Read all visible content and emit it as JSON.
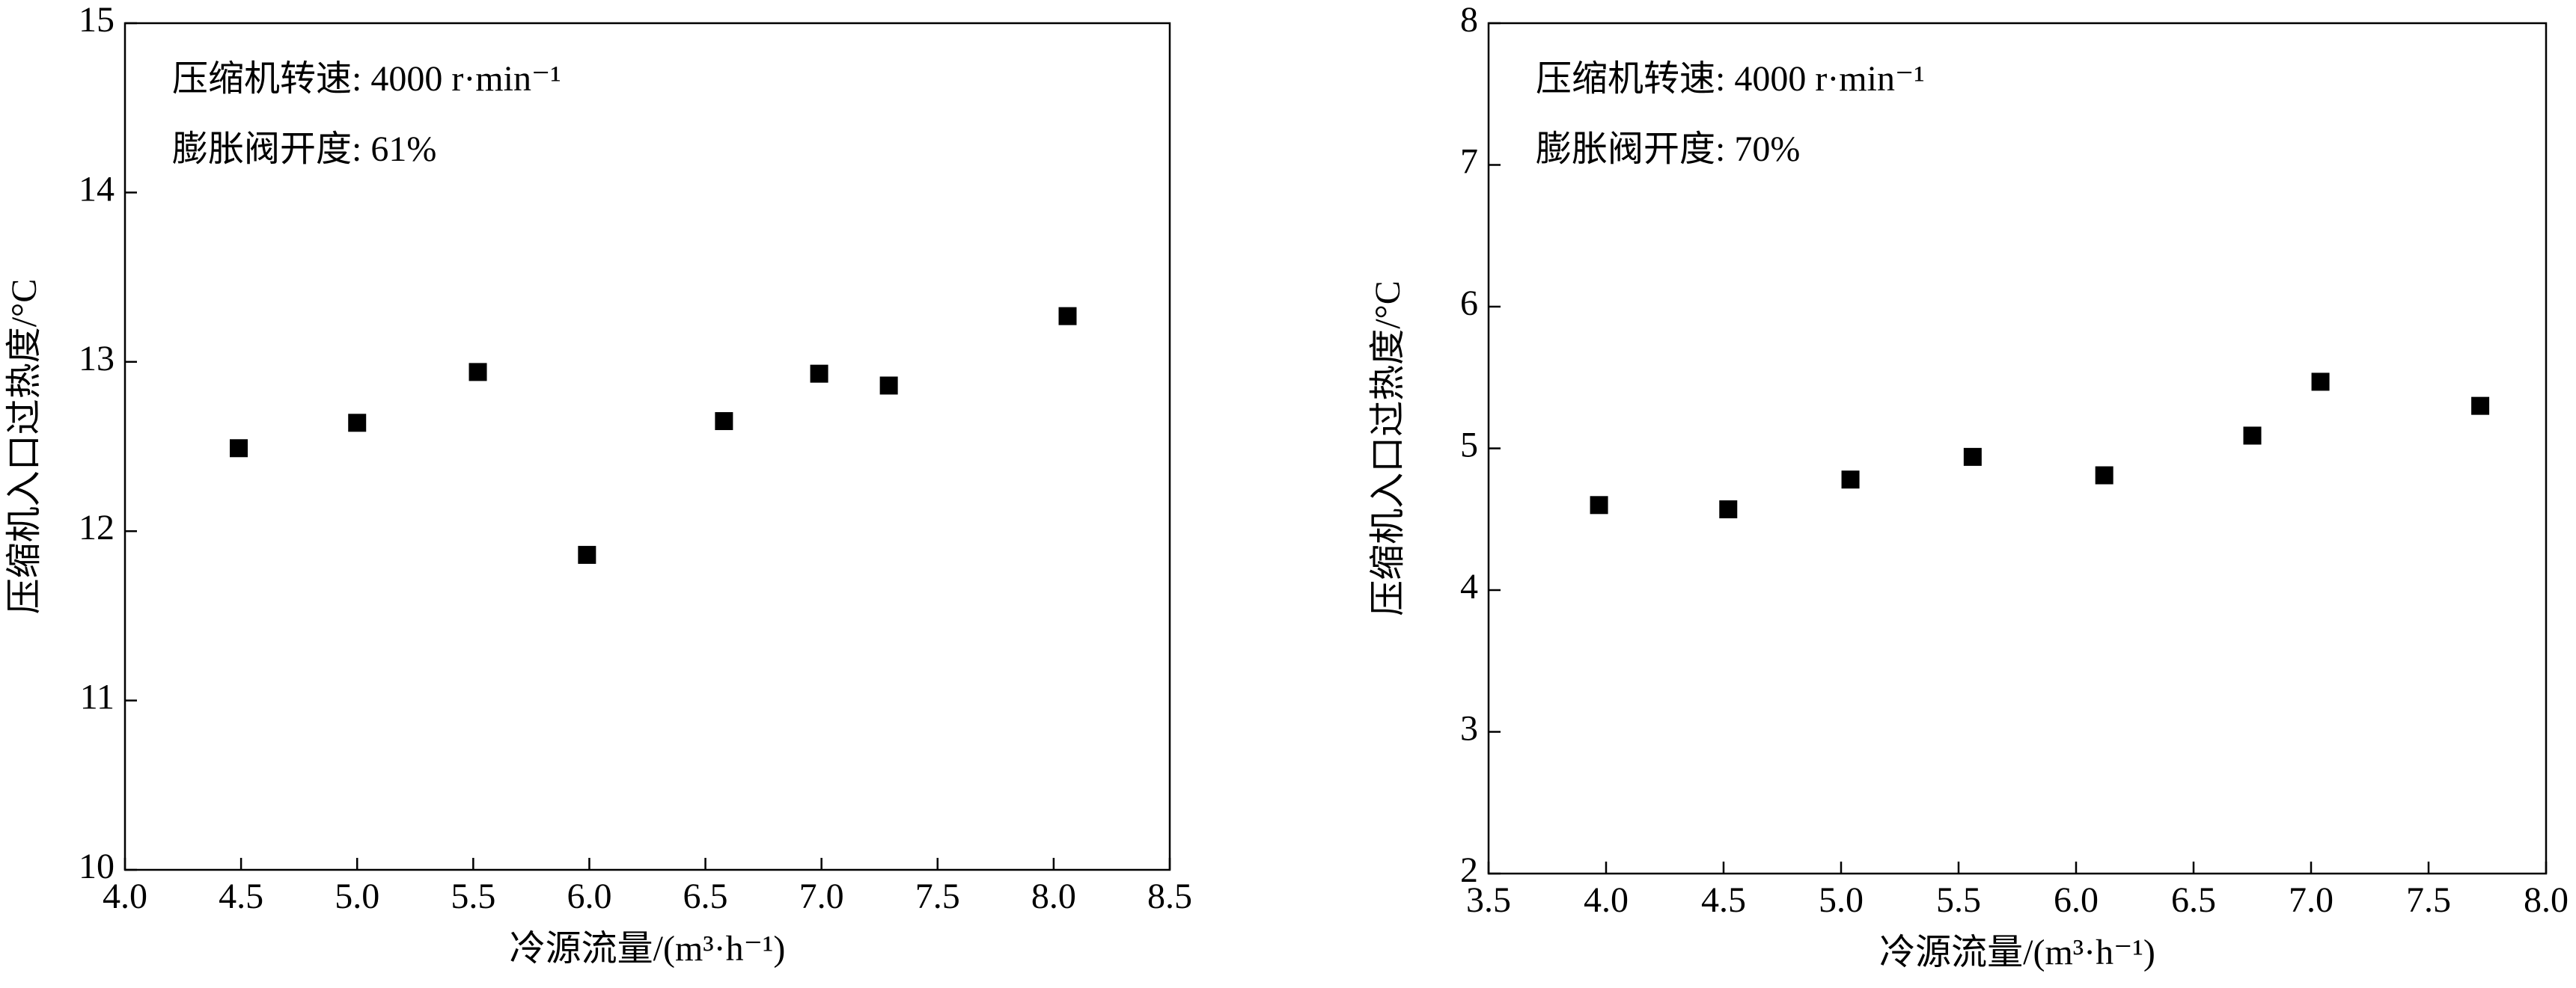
{
  "chart_data": [
    {
      "type": "scatter",
      "annotations": [
        "压缩机转速: 4000 r·min⁻¹",
        "膨胀阀开度: 61%"
      ],
      "x_label": "冷源流量/(m³·h⁻¹)",
      "y_label": "压缩机入口过热度/°C",
      "x": [
        4.49,
        5.0,
        5.52,
        5.99,
        6.58,
        6.99,
        7.29,
        8.06
      ],
      "values": [
        12.49,
        12.64,
        12.94,
        11.86,
        12.65,
        12.93,
        12.86,
        13.27
      ],
      "color": "#000000",
      "xlim": [
        4.0,
        8.5
      ],
      "xticks": [
        {
          "value": 4.0,
          "label": "4.0"
        },
        {
          "value": 4.5,
          "label": "4.5"
        },
        {
          "value": 5.0,
          "label": "5.0"
        },
        {
          "value": 5.5,
          "label": "5.5"
        },
        {
          "value": 6.0,
          "label": "6.0"
        },
        {
          "value": 6.5,
          "label": "6.5"
        },
        {
          "value": 7.0,
          "label": "7.0"
        },
        {
          "value": 7.5,
          "label": "7.5"
        },
        {
          "value": 8.0,
          "label": "8.0"
        },
        {
          "value": 8.5,
          "label": "8.5"
        }
      ],
      "ylim": [
        10,
        15
      ],
      "yticks": [
        10,
        11,
        12,
        13,
        14,
        15
      ]
    },
    {
      "type": "scatter",
      "annotations": [
        "压缩机转速: 4000 r·min⁻¹",
        "膨胀阀开度: 70%"
      ],
      "x_label": "冷源流量/(m³·h⁻¹)",
      "y_label": "压缩机入口过热度/°C",
      "x": [
        3.97,
        4.52,
        5.04,
        5.56,
        6.12,
        6.75,
        7.04,
        7.72
      ],
      "values": [
        4.6,
        4.57,
        4.78,
        4.94,
        4.81,
        5.09,
        5.47,
        5.3
      ],
      "color": "#000000",
      "xlim": [
        3.5,
        8.0
      ],
      "xticks": [
        {
          "value": 3.5,
          "label": "3.5"
        },
        {
          "value": 4.0,
          "label": "4.0"
        },
        {
          "value": 4.5,
          "label": "4.5"
        },
        {
          "value": 5.0,
          "label": "5.0"
        },
        {
          "value": 5.5,
          "label": "5.5"
        },
        {
          "value": 6.0,
          "label": "6.0"
        },
        {
          "value": 6.5,
          "label": "6.5"
        },
        {
          "value": 7.0,
          "label": "7.0"
        },
        {
          "value": 7.5,
          "label": "7.5"
        },
        {
          "value": 8.0,
          "label": "8.0"
        }
      ],
      "ylim": [
        2,
        8
      ],
      "yticks": [
        2,
        3,
        4,
        5,
        6,
        7,
        8
      ]
    }
  ]
}
